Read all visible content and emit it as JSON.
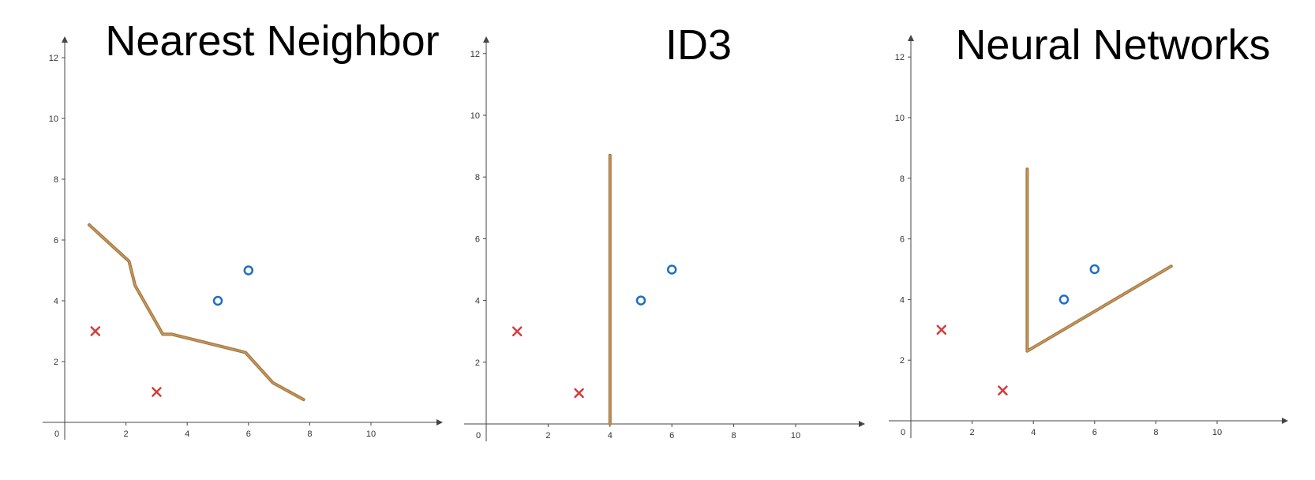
{
  "chart_data": [
    {
      "type": "scatter",
      "title": "Nearest Neighbor",
      "xlabel": "",
      "ylabel": "",
      "x_ticks": [
        "0",
        "2",
        "4",
        "6",
        "8",
        "10"
      ],
      "y_ticks": [
        "2",
        "4",
        "6",
        "8",
        "10",
        "12"
      ],
      "xlim": [
        0,
        12
      ],
      "ylim": [
        0,
        12
      ],
      "grid": false,
      "colors": {
        "x": "#d33b3b",
        "o": "#1f6fc2",
        "boundary": "#a4773f"
      },
      "series": [
        {
          "marker": "x",
          "points": [
            [
              1,
              3
            ],
            [
              3,
              1
            ]
          ]
        },
        {
          "marker": "o",
          "points": [
            [
              5,
              4
            ],
            [
              6,
              5
            ]
          ]
        }
      ],
      "boundary": [
        [
          0.8,
          6.5
        ],
        [
          2.1,
          5.3
        ],
        [
          2.3,
          4.5
        ],
        [
          3.2,
          2.9
        ],
        [
          3.5,
          2.9
        ],
        [
          5.9,
          2.3
        ],
        [
          6.8,
          1.3
        ],
        [
          7.8,
          0.75
        ]
      ]
    },
    {
      "type": "scatter",
      "title": "ID3",
      "xlabel": "",
      "ylabel": "",
      "x_ticks": [
        "0",
        "2",
        "4",
        "6",
        "8",
        "10"
      ],
      "y_ticks": [
        "2",
        "4",
        "6",
        "8",
        "10",
        "12"
      ],
      "xlim": [
        0,
        12
      ],
      "ylim": [
        0,
        12
      ],
      "grid": false,
      "colors": {
        "x": "#d33b3b",
        "o": "#1f6fc2",
        "boundary": "#a4773f"
      },
      "series": [
        {
          "marker": "x",
          "points": [
            [
              1,
              3
            ],
            [
              3,
              1
            ]
          ]
        },
        {
          "marker": "o",
          "points": [
            [
              5,
              4
            ],
            [
              6,
              5
            ]
          ]
        }
      ],
      "boundary": [
        [
          4,
          8.7
        ],
        [
          4,
          0
        ]
      ]
    },
    {
      "type": "scatter",
      "title": "Neural Networks",
      "xlabel": "",
      "ylabel": "",
      "x_ticks": [
        "0",
        "2",
        "4",
        "6",
        "8",
        "10"
      ],
      "y_ticks": [
        "2",
        "4",
        "6",
        "8",
        "10",
        "12"
      ],
      "xlim": [
        0,
        12
      ],
      "ylim": [
        0,
        12
      ],
      "grid": false,
      "colors": {
        "x": "#d33b3b",
        "o": "#1f6fc2",
        "boundary": "#a4773f"
      },
      "series": [
        {
          "marker": "x",
          "points": [
            [
              1,
              3
            ],
            [
              3,
              1
            ]
          ]
        },
        {
          "marker": "o",
          "points": [
            [
              5,
              4
            ],
            [
              6,
              5
            ]
          ]
        }
      ],
      "boundary": [
        [
          3.8,
          8.3
        ],
        [
          3.8,
          2.3
        ],
        [
          8.5,
          5.1
        ]
      ]
    }
  ]
}
